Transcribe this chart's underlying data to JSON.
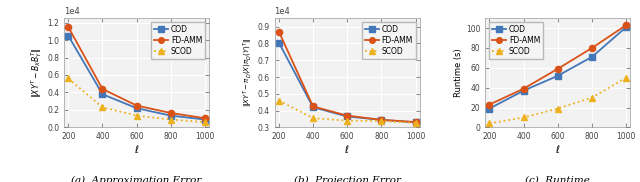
{
  "ell": [
    200,
    400,
    600,
    800,
    1000
  ],
  "approx_cod": [
    10500,
    3800,
    2200,
    1350,
    900
  ],
  "approx_fdamm": [
    11500,
    4400,
    2500,
    1650,
    1050
  ],
  "approx_scod": [
    5600,
    2300,
    1350,
    900,
    600
  ],
  "proj_cod": [
    8050,
    4200,
    3650,
    3450,
    3300
  ],
  "proj_fdamm": [
    8700,
    4250,
    3700,
    3450,
    3320
  ],
  "proj_scod": [
    4600,
    3550,
    3400,
    3380,
    3270
  ],
  "runtime_cod": [
    19,
    37,
    52,
    71,
    101
  ],
  "runtime_fdamm": [
    23,
    39,
    59,
    80,
    103
  ],
  "runtime_scod": [
    4,
    10,
    19,
    30,
    50
  ],
  "cod_color": "#4477b8",
  "fdamm_color": "#d95319",
  "scod_color": "#edb120",
  "bg_color": "#f0f0f0",
  "ax_color": "#808080",
  "caption_a": "(a)  Approximation Error",
  "caption_b": "(b)  Projection Error",
  "caption_c": "(c)  Runtime",
  "ylabel_a": "$\\|XY^T - B_X B_Y^T\\|$",
  "ylabel_b": "$\\|XY^T - \\pi_D(X)\\pi_D(Y)^T\\|$",
  "ylabel_c": "Runtime (s)"
}
